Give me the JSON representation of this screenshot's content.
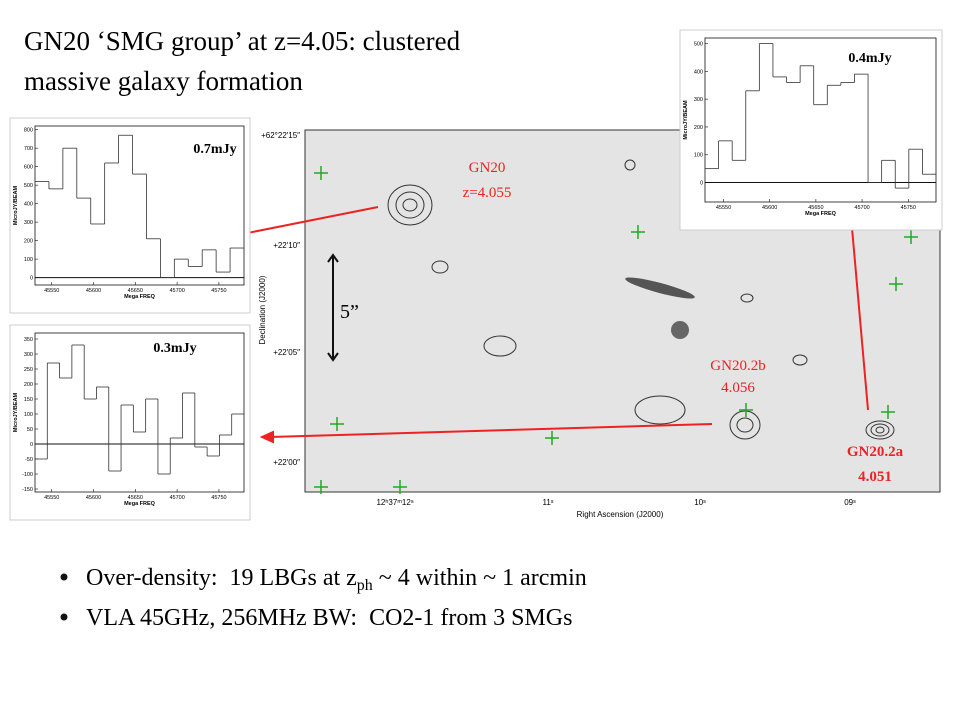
{
  "title": [
    "GN20 ‘SMG group’ at z=4.05:  clustered",
    "massive  galaxy formation"
  ],
  "bullets": [
    [
      "Over-density:  19 LBGs at z",
      "ph",
      " ~ 4 within ~ 1 arcmin"
    ],
    [
      "VLA 45GHz, 256MHz BW:  CO2-1 from 3 SMGs"
    ]
  ],
  "image": {
    "xlabel": "Right Ascension (J2000)",
    "ylabel": "Declination (J2000)",
    "xticks": [
      "12ʰ37ᵐ12ˢ",
      "11ˢ",
      "10ˢ",
      "09ˢ"
    ],
    "yticks": [
      "+62°22′15″",
      "+22′10″",
      "+22′05″",
      "+22′00″"
    ],
    "scale": "5”",
    "labels": [
      [
        "GN20",
        "z=4.055"
      ],
      [
        "GN20.2b",
        "4.056"
      ],
      [
        "GN20.2a",
        "4.051"
      ]
    ]
  },
  "spectra": [
    {
      "label": "0.7mJy",
      "xlabel": "Mega FREQ",
      "ylabel": "MicroJY/BEAM",
      "xlim": [
        45530,
        45780
      ],
      "ylim": [
        -40,
        820
      ],
      "xticks": [
        45550,
        45600,
        45650,
        45700,
        45750
      ],
      "yticks": [
        0,
        100,
        200,
        300,
        400,
        500,
        600,
        700,
        800
      ],
      "values": [
        520,
        480,
        700,
        430,
        290,
        620,
        770,
        560,
        210,
        0,
        100,
        60,
        150,
        30,
        160
      ]
    },
    {
      "label": "0.3mJy",
      "xlabel": "Mega FREQ",
      "ylabel": "MicroJY/BEAM",
      "xlim": [
        45530,
        45780
      ],
      "ylim": [
        -160,
        370
      ],
      "xticks": [
        45550,
        45600,
        45650,
        45700,
        45750
      ],
      "yticks": [
        -150,
        -100,
        -50,
        0,
        50,
        100,
        150,
        200,
        250,
        300,
        350
      ],
      "values": [
        -50,
        270,
        220,
        330,
        150,
        190,
        -90,
        130,
        40,
        150,
        -100,
        20,
        170,
        -10,
        -40,
        30,
        100
      ]
    },
    {
      "label": "0.4mJy",
      "xlabel": "Mega FREQ",
      "ylabel": "MicroJY/BEAM",
      "xlim": [
        45530,
        45780
      ],
      "ylim": [
        -70,
        520
      ],
      "xticks": [
        45550,
        45600,
        45650,
        45700,
        45750
      ],
      "yticks": [
        0,
        100,
        200,
        300,
        400,
        500
      ],
      "values": [
        50,
        150,
        80,
        330,
        500,
        380,
        360,
        420,
        280,
        350,
        360,
        390,
        0,
        80,
        -20,
        120,
        30
      ]
    }
  ]
}
